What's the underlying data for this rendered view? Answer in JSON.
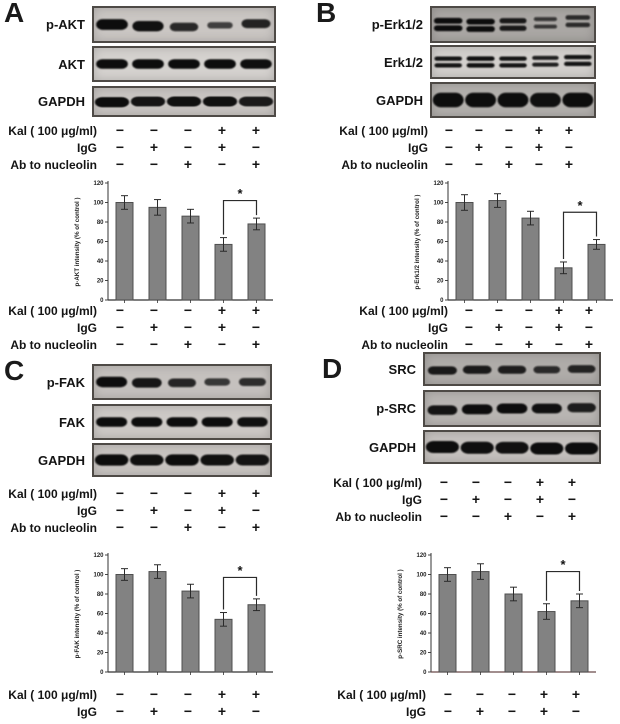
{
  "conditions": {
    "labels": [
      "Kal ( 100 μg/ml)",
      "IgG",
      "Ab to nucleolin"
    ],
    "matrix": [
      [
        "−",
        "−",
        "−",
        "+",
        "+"
      ],
      [
        "−",
        "+",
        "−",
        "+",
        "−"
      ],
      [
        "−",
        "−",
        "+",
        "−",
        "+"
      ]
    ]
  },
  "panels": [
    {
      "letter": "A",
      "blots": [
        {
          "label": "p-AKT",
          "style": "single",
          "bg": "#cac6c3",
          "base": 4,
          "scale": 9,
          "weights": [
            1,
            0.95,
            0.7,
            0.42,
            0.75
          ],
          "dy": [
            0,
            2,
            3,
            1,
            -1
          ]
        },
        {
          "label": "AKT",
          "style": "single",
          "bg": "#d5d2cf",
          "base": 8,
          "scale": 4,
          "weights": [
            1,
            1,
            1,
            1,
            0.98
          ],
          "dy": [
            0,
            0,
            0,
            0,
            0
          ]
        },
        {
          "label": "GAPDH",
          "style": "blob",
          "bg": "#c9c5c2",
          "base": 11,
          "scale": 4,
          "weights": [
            1,
            0.9,
            0.95,
            0.95,
            0.85
          ],
          "dy": [
            1,
            0,
            0,
            0,
            0
          ]
        }
      ]
    },
    {
      "letter": "B",
      "blots": [
        {
          "label": "p-Erk1/2",
          "style": "double",
          "bg": "#aaa7a4",
          "base": 3,
          "scale": 4,
          "weights": [
            1,
            1,
            0.85,
            0.45,
            0.6
          ],
          "dy": [
            0,
            1,
            0,
            -2,
            -4
          ]
        },
        {
          "label": "Erk1/2",
          "style": "double",
          "bg": "#d3d0cd",
          "base": 3,
          "scale": 3,
          "weights": [
            0.9,
            0.95,
            0.9,
            0.8,
            0.9
          ],
          "dy": [
            0,
            0,
            0,
            -1,
            -2
          ]
        },
        {
          "label": "GAPDH",
          "style": "blob",
          "bg": "#b3b0ad",
          "base": 14,
          "scale": 4,
          "weights": [
            1,
            1,
            1,
            0.95,
            1
          ],
          "dy": [
            0,
            0,
            0,
            0,
            0
          ]
        }
      ]
    },
    {
      "letter": "C",
      "blots": [
        {
          "label": "p-FAK",
          "style": "single",
          "bg": "#c5c1be",
          "base": 5,
          "scale": 8,
          "weights": [
            1,
            0.88,
            0.72,
            0.5,
            0.62
          ],
          "dy": [
            0,
            1,
            1,
            0,
            0
          ]
        },
        {
          "label": "FAK",
          "style": "single",
          "bg": "#cdc9c6",
          "base": 8,
          "scale": 4,
          "weights": [
            1,
            1,
            1,
            1,
            0.95
          ],
          "dy": [
            0,
            0,
            0,
            0,
            0
          ]
        },
        {
          "label": "GAPDH",
          "style": "blob",
          "bg": "#c8c4c1",
          "base": 11,
          "scale": 4,
          "weights": [
            1,
            0.95,
            1,
            0.95,
            0.9
          ],
          "dy": [
            0,
            0,
            0,
            0,
            0
          ]
        }
      ]
    },
    {
      "letter": "D",
      "blots": [
        {
          "label": "SRC",
          "style": "single",
          "bg": "#afaca9",
          "base": 6,
          "scale": 6,
          "weights": [
            0.85,
            0.82,
            0.78,
            0.62,
            0.72
          ],
          "dy": [
            2,
            1,
            1,
            1,
            0
          ]
        },
        {
          "label": "p-SRC",
          "style": "single",
          "bg": "#b8b5b2",
          "base": 7,
          "scale": 5,
          "weights": [
            0.9,
            1,
            1,
            0.95,
            0.8
          ],
          "dy": [
            2,
            1,
            0,
            0,
            -1
          ]
        },
        {
          "label": "GAPDH",
          "style": "blob",
          "bg": "#c5c1be",
          "base": 12,
          "scale": 4,
          "weights": [
            1,
            0.98,
            0.95,
            1,
            1
          ],
          "dy": [
            0,
            1,
            1,
            2,
            2
          ]
        }
      ]
    }
  ],
  "chart_data": [
    {
      "type": "bar",
      "panel": "A",
      "title": "",
      "ylabel": "p-AKT intensity (% of control )",
      "xlabel": "",
      "ylim": [
        0,
        120
      ],
      "yticks": [
        0,
        20,
        40,
        60,
        80,
        100,
        120
      ],
      "categories": [
        "Kal−/IgG−/Ab−",
        "Kal−/IgG+/Ab−",
        "Kal−/IgG−/Ab+",
        "Kal+/IgG+/Ab−",
        "Kal+/IgG−/Ab+"
      ],
      "values": [
        100,
        95,
        86,
        57,
        78
      ],
      "errors": [
        7,
        8,
        7,
        7,
        6
      ],
      "significance": {
        "between": [
          3,
          4
        ],
        "label": "*",
        "level": 102
      },
      "bar_color": "#828282",
      "bar_edge": "#4f4f4f",
      "grid": false,
      "legend": false
    },
    {
      "type": "bar",
      "panel": "B",
      "title": "",
      "ylabel": "p-Erk1/2 intensity (% of control )",
      "xlabel": "",
      "ylim": [
        0,
        120
      ],
      "yticks": [
        0,
        20,
        40,
        60,
        80,
        100,
        120
      ],
      "categories": [
        "Kal−/IgG−/Ab−",
        "Kal−/IgG+/Ab−",
        "Kal−/IgG−/Ab+",
        "Kal+/IgG+/Ab−",
        "Kal+/IgG−/Ab+"
      ],
      "values": [
        100,
        102,
        84,
        33,
        57
      ],
      "errors": [
        8,
        7,
        7,
        6,
        5
      ],
      "significance": {
        "between": [
          3,
          4
        ],
        "label": "*",
        "level": 90
      },
      "bar_color": "#828282",
      "bar_edge": "#4f4f4f",
      "grid": false,
      "legend": false
    },
    {
      "type": "bar",
      "panel": "C",
      "title": "",
      "ylabel": "p-FAK intensity (% of control )",
      "xlabel": "",
      "ylim": [
        0,
        120
      ],
      "yticks": [
        0,
        20,
        40,
        60,
        80,
        100,
        120
      ],
      "categories": [
        "Kal−/IgG−/Ab−",
        "Kal−/IgG+/Ab−",
        "Kal−/IgG−/Ab+",
        "Kal+/IgG+/Ab−",
        "Kal+/IgG−/Ab+"
      ],
      "values": [
        100,
        103,
        83,
        54,
        69
      ],
      "errors": [
        6,
        7,
        7,
        7,
        6
      ],
      "significance": {
        "between": [
          3,
          4
        ],
        "label": "*",
        "level": 97
      },
      "bar_color": "#828282",
      "bar_edge": "#4f4f4f",
      "grid": false,
      "legend": false
    },
    {
      "type": "bar",
      "panel": "D",
      "title": "",
      "ylabel": "p-SRC intensity (% of control )",
      "xlabel": "",
      "ylim": [
        0,
        120
      ],
      "yticks": [
        0,
        20,
        40,
        60,
        80,
        100,
        120
      ],
      "categories": [
        "Kal−/IgG−/Ab−",
        "Kal−/IgG+/Ab−",
        "Kal−/IgG−/Ab+",
        "Kal+/IgG+/Ab−",
        "Kal+/IgG−/Ab+"
      ],
      "values": [
        100,
        103,
        80,
        62,
        73
      ],
      "errors": [
        7,
        8,
        7,
        8,
        7
      ],
      "significance": {
        "between": [
          3,
          4
        ],
        "label": "*",
        "level": 103
      },
      "bar_color": "#828282",
      "bar_edge": "#4f4f4f",
      "baseline_color": "#6b4a4a",
      "grid": false,
      "legend": false
    }
  ]
}
